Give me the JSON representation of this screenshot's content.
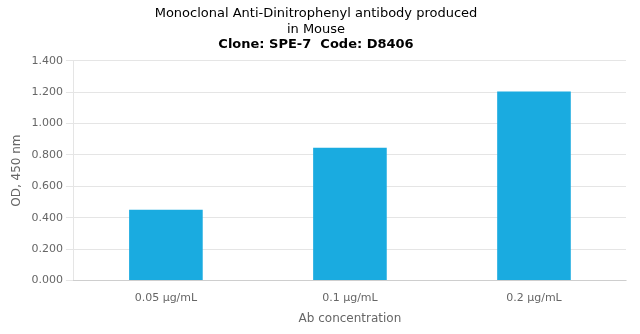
{
  "chart_data": {
    "type": "bar",
    "title": [
      "Monoclonal Anti-Dinitrophenyl antibody produced",
      "in Mouse"
    ],
    "subtitle": "Clone: SPE-7  Code: D8406",
    "categories": [
      "0.05 μg/mL",
      "0.1 μg/mL",
      "0.2 μg/mL"
    ],
    "values": [
      0.45,
      0.845,
      1.205
    ],
    "color": "#1AABE0",
    "xlabel": "Ab concentration",
    "ylabel": "OD, 450 nm",
    "ylim": [
      0,
      1.4
    ],
    "yticks": [
      {
        "value": 0,
        "label": "0.000"
      },
      {
        "value": 0.2,
        "label": "0.200"
      },
      {
        "value": 0.4,
        "label": "0.400"
      },
      {
        "value": 0.6,
        "label": "0.600"
      },
      {
        "value": 0.8,
        "label": "0.800"
      },
      {
        "value": 1.0,
        "label": "1.000"
      },
      {
        "value": 1.2,
        "label": "1.200"
      },
      {
        "value": 1.4,
        "label": "1.400"
      }
    ],
    "grid": true
  }
}
